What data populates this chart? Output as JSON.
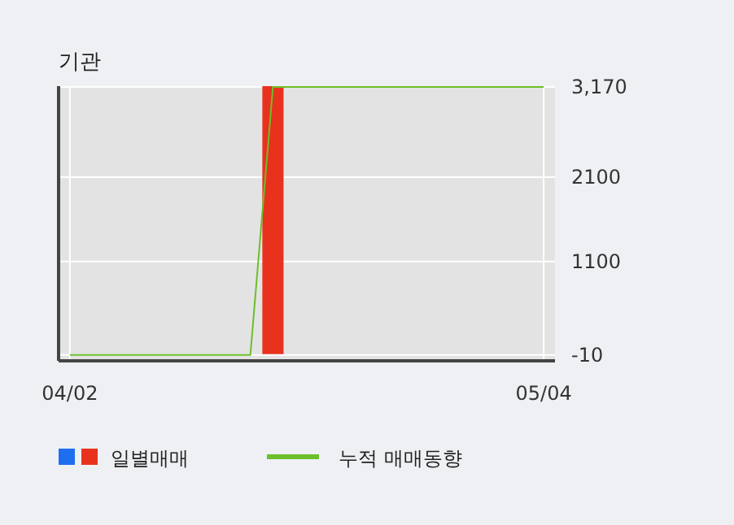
{
  "chart_data": {
    "type": "bar",
    "title": "기관",
    "categories": [
      "04/02",
      null,
      null,
      null,
      null,
      null,
      null,
      null,
      null,
      null,
      null,
      null,
      null,
      null,
      null,
      null,
      null,
      null,
      null,
      null,
      null,
      "05/04"
    ],
    "series": [
      {
        "name": "일별매매",
        "colors": [
          "#1f6ef0",
          "#e8321e",
          "#e8321e",
          "#e8321e",
          "#e8321e",
          "#e8321e",
          "#e8321e",
          "#e8321e",
          "#e8321e",
          "#e8321e",
          "#e8321e",
          "#e8321e",
          "#e8321e",
          "#e8321e",
          "#e8321e",
          "#e8321e",
          "#e8321e",
          "#e8321e",
          "#e8321e",
          "#e8321e",
          "#e8321e",
          "#e8321e"
        ],
        "values": [
          null,
          0,
          0,
          0,
          0,
          0,
          0,
          0,
          0,
          3180,
          0,
          0,
          0,
          0,
          0,
          0,
          0,
          0,
          0,
          0,
          0,
          0
        ]
      },
      {
        "name": "누적 매매동향",
        "type": "line",
        "color": "#6cbf2a",
        "values": [
          -10,
          -10,
          -10,
          -10,
          -10,
          -10,
          -10,
          -10,
          -10,
          3170,
          3170,
          3170,
          3170,
          3170,
          3170,
          3170,
          3170,
          3170,
          3170,
          3170,
          3170,
          3170
        ]
      }
    ],
    "ylim": [
      -80,
      3180
    ],
    "yticks": [
      -10,
      1100,
      2100,
      {
        "value": 3170,
        "label": "3,170"
      }
    ],
    "grid": true,
    "legend": "bottom"
  }
}
